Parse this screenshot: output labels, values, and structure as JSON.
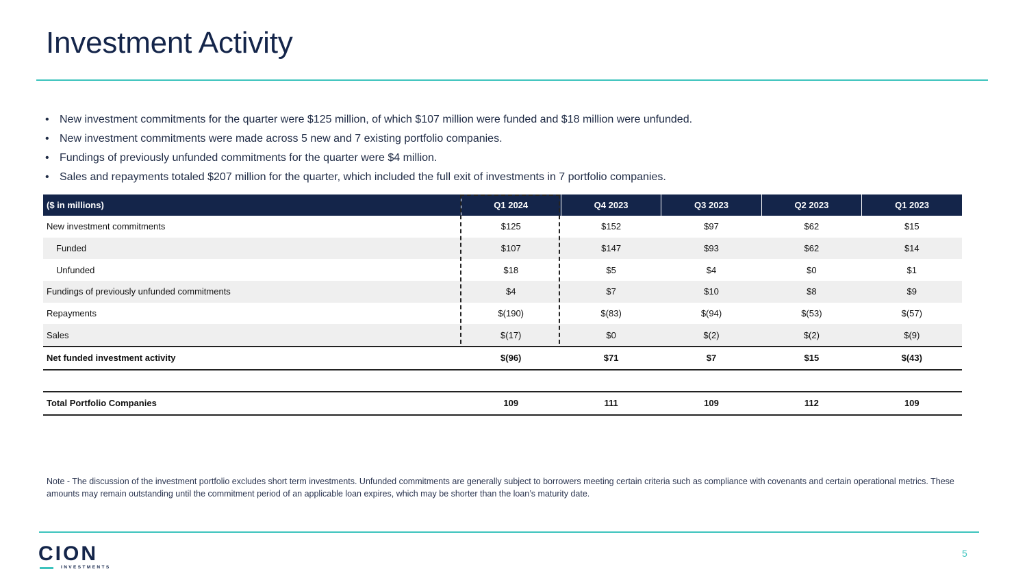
{
  "slide": {
    "title": "Investment Activity",
    "page_number": "5"
  },
  "bullets": [
    "New investment commitments for the quarter were $125 million, of which $107 million were funded and $18 million were unfunded.",
    "New investment commitments were made across 5 new and 7 existing portfolio companies.",
    "Fundings of previously unfunded commitments for the quarter were $4 million.",
    "Sales and repayments totaled $207 million for the quarter, which included the full exit of investments in 7 portfolio companies."
  ],
  "table": {
    "header": [
      "($ in millions)",
      "Q1 2024",
      "Q4 2023",
      "Q3 2023",
      "Q2 2023",
      "Q1 2023"
    ],
    "rows": [
      {
        "label": "New investment commitments",
        "values": [
          "$125",
          "$152",
          "$97",
          "$62",
          "$15"
        ]
      },
      {
        "label": "Funded",
        "values": [
          "$107",
          "$147",
          "$93",
          "$62",
          "$14"
        ]
      },
      {
        "label": "Unfunded",
        "values": [
          "$18",
          "$5",
          "$4",
          "$0",
          "$1"
        ]
      },
      {
        "label": "Fundings of previously unfunded commitments",
        "values": [
          "$4",
          "$7",
          "$10",
          "$8",
          "$9"
        ]
      },
      {
        "label": "Repayments",
        "values": [
          "$(190)",
          "$(83)",
          "$(94)",
          "$(53)",
          "$(57)"
        ]
      },
      {
        "label": "Sales",
        "values": [
          "$(17)",
          "$0",
          "$(2)",
          "$(2)",
          "$(9)"
        ]
      }
    ],
    "net": {
      "label": "Net funded investment activity",
      "values": [
        "$(96)",
        "$71",
        "$7",
        "$15",
        "$(43)"
      ]
    },
    "total": {
      "label": "Total Portfolio Companies",
      "values": [
        "109",
        "111",
        "109",
        "112",
        "109"
      ]
    }
  },
  "note": "Note - The discussion of the investment portfolio excludes short term investments. Unfunded commitments are generally subject to borrowers meeting certain criteria such as compliance with covenants and certain operational metrics. These amounts may remain outstanding until the commitment period of an applicable loan expires, which may be shorter than the loan’s maturity date.",
  "logo": {
    "main": "CION",
    "sub": "INVESTMENTS"
  },
  "colors": {
    "navy": "#14254a",
    "teal": "#3cc3bd"
  }
}
